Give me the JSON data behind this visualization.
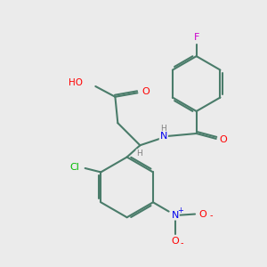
{
  "background_color": "#ebebeb",
  "bond_color": "#4a7c6a",
  "atom_colors": {
    "O": "#ff0000",
    "N": "#0000ee",
    "Cl": "#00bb00",
    "F": "#cc00cc",
    "H": "#808080",
    "C": "#4a7c6a"
  }
}
